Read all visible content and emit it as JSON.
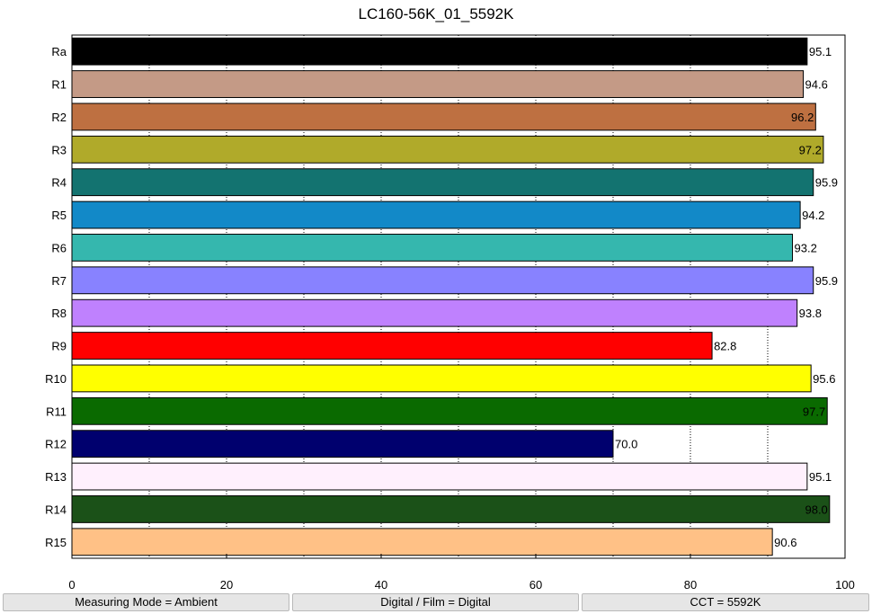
{
  "chart_data": {
    "type": "bar",
    "orientation": "horizontal",
    "title": "LC160-56K_01_5592K",
    "xlabel": "",
    "ylabel": "",
    "xlim": [
      0,
      100
    ],
    "x_ticks": [
      "0",
      "20",
      "40",
      "60",
      "80",
      "100"
    ],
    "grid": "vertical dotted lines every 10",
    "categories": [
      "Ra",
      "R1",
      "R2",
      "R3",
      "R4",
      "R5",
      "R6",
      "R7",
      "R8",
      "R9",
      "R10",
      "R11",
      "R12",
      "R13",
      "R14",
      "R15"
    ],
    "values": [
      95.1,
      94.6,
      96.2,
      97.2,
      95.9,
      94.2,
      93.2,
      95.9,
      93.8,
      82.8,
      95.6,
      97.7,
      70.0,
      95.1,
      98.0,
      90.6
    ],
    "value_labels": [
      "95.1",
      "94.6",
      "96.2",
      "97.2",
      "95.9",
      "94.2",
      "93.2",
      "95.9",
      "93.8",
      "82.8",
      "95.6",
      "97.7",
      "70.0",
      "95.1",
      "98.0",
      "90.6"
    ],
    "colors": [
      "#000000",
      "#c49a86",
      "#be7041",
      "#b0aa2a",
      "#137370",
      "#1289c8",
      "#35b7ae",
      "#8882ff",
      "#bf81fe",
      "#ff0000",
      "#ffff00",
      "#0a6a00",
      "#00006e",
      "#fff0fd",
      "#1b5118",
      "#ffc186"
    ]
  },
  "footer": {
    "measuring_mode": "Measuring Mode = Ambient",
    "digital_film": "Digital / Film = Digital",
    "cct": "CCT = 5592K"
  }
}
